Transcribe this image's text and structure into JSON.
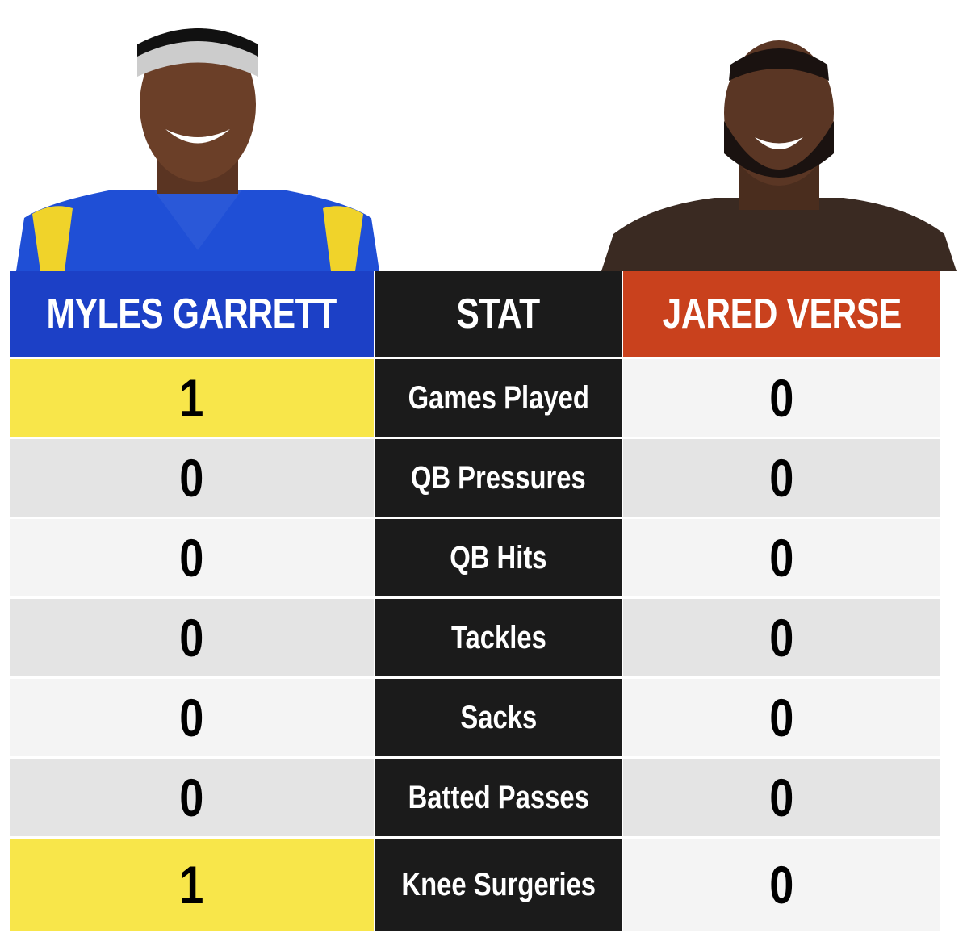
{
  "table": {
    "headers": [
      "MYLES GARRETT",
      "STAT",
      "JARED VERSE"
    ],
    "rows": [
      [
        1,
        "Games Played",
        0
      ],
      [
        0,
        "QB Pressures",
        0
      ],
      [
        0,
        "QB Hits",
        0
      ],
      [
        0,
        "Tackles",
        0
      ],
      [
        0,
        "Sacks",
        0
      ],
      [
        0,
        "Batted Passes",
        0
      ],
      [
        1,
        "Knee Surgeries",
        0
      ]
    ]
  }
}
